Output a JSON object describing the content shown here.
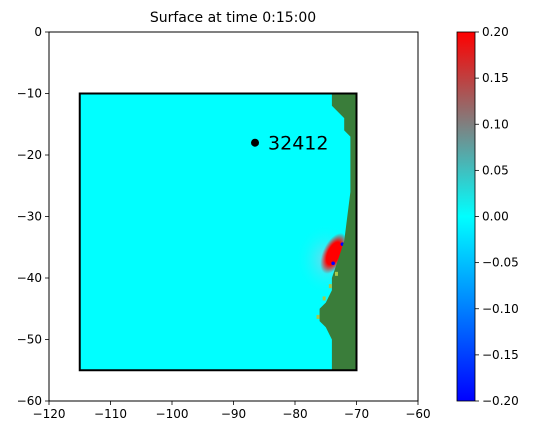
{
  "chart_data": {
    "type": "heatmap",
    "title": "Surface at time 0:15:00",
    "xlabel": "",
    "ylabel": "",
    "xlim": [
      -120,
      -60
    ],
    "ylim": [
      -60,
      0
    ],
    "xticks": [
      -120,
      -110,
      -100,
      -90,
      -80,
      -70,
      -60
    ],
    "yticks": [
      0,
      -10,
      -20,
      -30,
      -40,
      -50,
      -60
    ],
    "grid": false,
    "domain_box": {
      "x": [
        -115,
        -70
      ],
      "y": [
        -55,
        -10
      ]
    },
    "gauge": {
      "label": "32412",
      "x": -86.5,
      "y": -18
    },
    "colorbar": {
      "range": [
        -0.2,
        0.2
      ],
      "ticks": [
        "0.20",
        "0.15",
        "0.10",
        "0.05",
        "0.00",
        "−0.05",
        "−0.10",
        "−0.15",
        "−0.20"
      ],
      "tick_values": [
        0.2,
        0.15,
        0.1,
        0.05,
        0.0,
        -0.05,
        -0.1,
        -0.15,
        -0.2
      ],
      "colors": [
        "#0000ff",
        "#00ffff",
        "#ff0000"
      ]
    },
    "colors": {
      "water": "#00ffff",
      "land": "#3a7d3a"
    },
    "land_mask": [
      [
        [
          -74,
          -10
        ],
        [
          -70,
          -10
        ],
        [
          -70,
          -55
        ],
        [
          -74,
          -55
        ],
        [
          -74,
          -50
        ],
        [
          -75,
          -48
        ],
        [
          -76,
          -47
        ],
        [
          -76,
          -45
        ],
        [
          -75,
          -44
        ],
        [
          -74,
          -42
        ],
        [
          -74,
          -40
        ],
        [
          -73,
          -37
        ],
        [
          -72,
          -34
        ],
        [
          -71.5,
          -30
        ],
        [
          -71,
          -26
        ],
        [
          -71,
          -17
        ],
        [
          -72,
          -16
        ],
        [
          -72,
          -14
        ],
        [
          -74,
          -12
        ]
      ]
    ],
    "anomaly_center": {
      "x": -74,
      "y": -36,
      "value": 0.2
    }
  }
}
